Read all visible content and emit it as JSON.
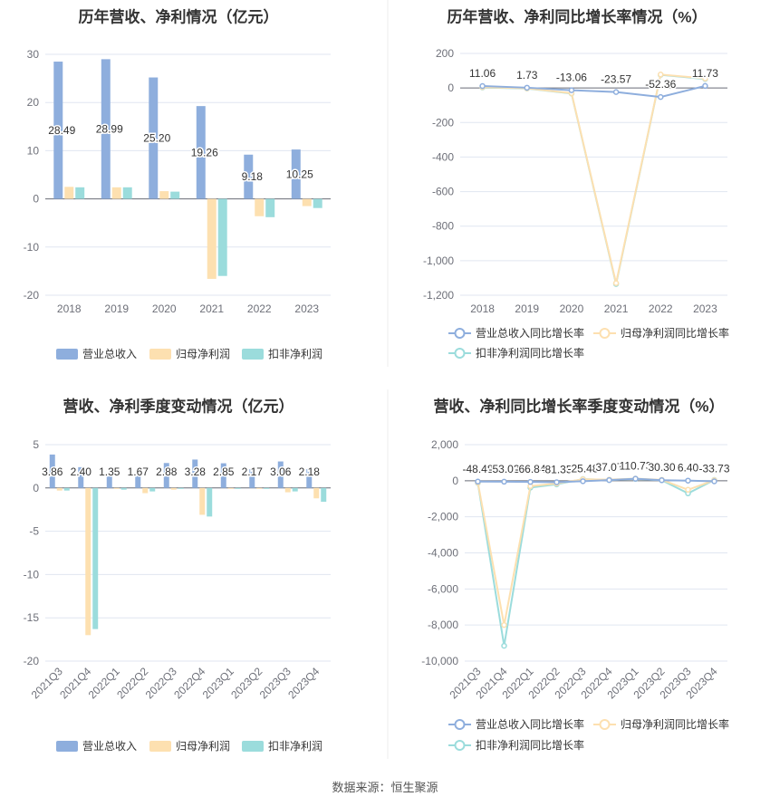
{
  "colors": {
    "revenue": "#8eaedd",
    "net": "#fde0b0",
    "deduct": "#9bdcdc",
    "axis_text": "#6e7079",
    "grid": "#e0e6f1",
    "title": "#333333",
    "divider": "#eeeeee"
  },
  "footer": "数据来源：恒生聚源",
  "chart_data": [
    {
      "id": "annual-bar",
      "type": "bar",
      "title": "历年营收、净利情况（亿元）",
      "categories": [
        "2018",
        "2019",
        "2020",
        "2021",
        "2022",
        "2023"
      ],
      "series": [
        {
          "name": "营业总收入",
          "values": [
            28.49,
            28.99,
            25.2,
            19.26,
            9.18,
            10.25
          ],
          "labels": [
            "28.49",
            "28.99",
            "25.20",
            "19.26",
            "9.18",
            "10.25"
          ]
        },
        {
          "name": "归母净利润",
          "values": [
            2.5,
            2.4,
            1.6,
            -16.6,
            -3.6,
            -1.5
          ]
        },
        {
          "name": "扣非净利润",
          "values": [
            2.4,
            2.4,
            1.5,
            -16.0,
            -3.8,
            -1.9
          ]
        }
      ],
      "yticks": [
        30,
        20,
        10,
        0,
        -10,
        -20
      ],
      "ylim": [
        -20,
        30
      ],
      "legend": "bottom",
      "grid": true
    },
    {
      "id": "annual-line",
      "type": "line",
      "title": "历年营收、净利同比增长率情况（%）",
      "categories": [
        "2018",
        "2019",
        "2020",
        "2021",
        "2022",
        "2023"
      ],
      "series": [
        {
          "name": "营业总收入同比增长率",
          "values": [
            11.06,
            1.73,
            -13.06,
            -23.57,
            -52.36,
            11.73
          ],
          "labels": [
            "11.06",
            "1.73",
            "-13.06",
            "-23.57",
            "-52.36",
            "11.73"
          ]
        },
        {
          "name": "归母净利润同比增长率",
          "values": [
            5,
            -2,
            -30,
            -1130,
            78,
            55
          ]
        },
        {
          "name": "扣非净利润同比增长率",
          "values": [
            3,
            -3,
            -32,
            -1135,
            76,
            52
          ]
        }
      ],
      "yticks": [
        "200",
        "0",
        "-200",
        "-400",
        "-600",
        "-800",
        "-1,000",
        "-1,200"
      ],
      "ylim": [
        -1200,
        200
      ],
      "legend": "bottom",
      "grid": true
    },
    {
      "id": "quarter-bar",
      "type": "bar",
      "title": "营收、净利季度变动情况（亿元）",
      "categories": [
        "2021Q3",
        "2021Q4",
        "2022Q1",
        "2022Q2",
        "2022Q3",
        "2022Q4",
        "2023Q1",
        "2023Q2",
        "2023Q3",
        "2023Q4"
      ],
      "series": [
        {
          "name": "营业总收入",
          "values": [
            3.86,
            2.4,
            1.35,
            1.67,
            2.88,
            3.28,
            2.85,
            2.17,
            3.06,
            2.18
          ],
          "labels": [
            "3.86",
            "2.40",
            "1.35",
            "1.67",
            "2.88",
            "3.28",
            "2.85",
            "2.17",
            "3.06",
            "2.18"
          ]
        },
        {
          "name": "归母净利润",
          "values": [
            -0.3,
            -17.0,
            -0.1,
            -0.6,
            -0.2,
            -3.1,
            -0.1,
            -0.1,
            -0.5,
            -1.2
          ]
        },
        {
          "name": "扣非净利润",
          "values": [
            -0.3,
            -16.3,
            -0.2,
            -0.4,
            -0.1,
            -3.3,
            -0.1,
            -0.1,
            -0.4,
            -1.6
          ]
        }
      ],
      "yticks": [
        5,
        0,
        -5,
        -10,
        -15,
        -20
      ],
      "ylim": [
        -20,
        5
      ],
      "legend": "bottom",
      "grid": true
    },
    {
      "id": "quarter-line",
      "type": "line",
      "title": "营收、净利同比增长率季度变动情况（%）",
      "categories": [
        "2021Q3",
        "2021Q4",
        "2022Q1",
        "2022Q2",
        "2022Q3",
        "2022Q4",
        "2023Q1",
        "2023Q2",
        "2023Q3",
        "2023Q4"
      ],
      "series": [
        {
          "name": "营业总收入同比增长率",
          "values": [
            -48.48,
            -53.03,
            -66.84,
            -81.35,
            -25.48,
            37.07,
            110.73,
            30.3,
            6.4,
            -33.73
          ],
          "labels": [
            "-48.48",
            "-53.03",
            "-66.84",
            "-81.35",
            "-25.48",
            "37.07",
            "110.73",
            "30.30",
            "6.40",
            "-33.73"
          ]
        },
        {
          "name": "归母净利润同比增长率",
          "values": [
            -100,
            -8000,
            -300,
            -150,
            80,
            60,
            120,
            50,
            -500,
            30
          ]
        },
        {
          "name": "扣非净利润同比增长率",
          "values": [
            -120,
            -9150,
            -380,
            -200,
            90,
            40,
            100,
            30,
            -700,
            40
          ]
        }
      ],
      "yticks": [
        "2,000",
        "0",
        "-2,000",
        "-4,000",
        "-6,000",
        "-8,000",
        "-10,000"
      ],
      "ylim": [
        -10000,
        2000
      ],
      "legend": "bottom",
      "grid": true
    }
  ]
}
